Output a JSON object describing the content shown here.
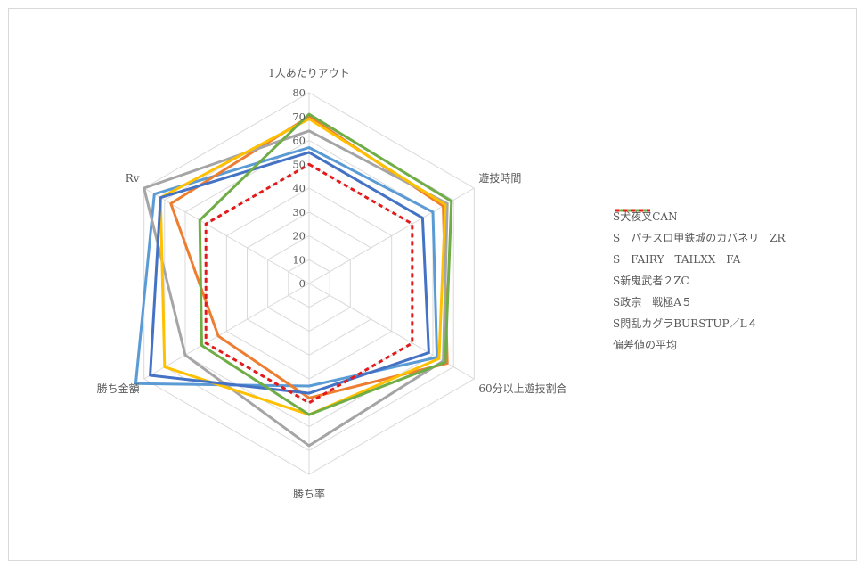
{
  "chart_data": {
    "type": "radar",
    "axes": [
      "1人あたりアウト",
      "遊技時間",
      "60分以上遊技割合",
      "勝ち率",
      "勝ち金額",
      "Rv"
    ],
    "r_ticks": [
      0,
      10,
      20,
      30,
      40,
      50,
      60,
      70,
      80
    ],
    "r_range": [
      0,
      80
    ],
    "grid": true,
    "legend_position": "right",
    "series": [
      {
        "name": "S犬夜叉CAN",
        "color": "#5b9bd5",
        "dash": false,
        "values": [
          57,
          60,
          62,
          43,
          84,
          75
        ]
      },
      {
        "name": "S　パチスロ甲鉄城のカバネリ　ZR",
        "color": "#ed7d31",
        "dash": false,
        "values": [
          70,
          65,
          67,
          48,
          44,
          67
        ]
      },
      {
        "name": "S　FAIRY　TAILXX　FA",
        "color": "#a5a5a5",
        "dash": false,
        "values": [
          64,
          67,
          65,
          68,
          60,
          80
        ]
      },
      {
        "name": "S新鬼武者２ZC",
        "color": "#ffc000",
        "dash": false,
        "values": [
          69,
          66,
          63,
          55,
          70,
          72
        ]
      },
      {
        "name": "S政宗　戦極A５",
        "color": "#4472c4",
        "dash": false,
        "values": [
          55,
          55,
          58,
          46,
          77,
          72
        ]
      },
      {
        "name": "S閃乱カグラBURSTUP／L４",
        "color": "#70ad47",
        "dash": false,
        "values": [
          71,
          69,
          66,
          55,
          52,
          53
        ]
      },
      {
        "name": "偏差値の平均",
        "color": "#e31a1c",
        "dash": true,
        "values": [
          50,
          50,
          50,
          50,
          50,
          50
        ]
      }
    ]
  }
}
